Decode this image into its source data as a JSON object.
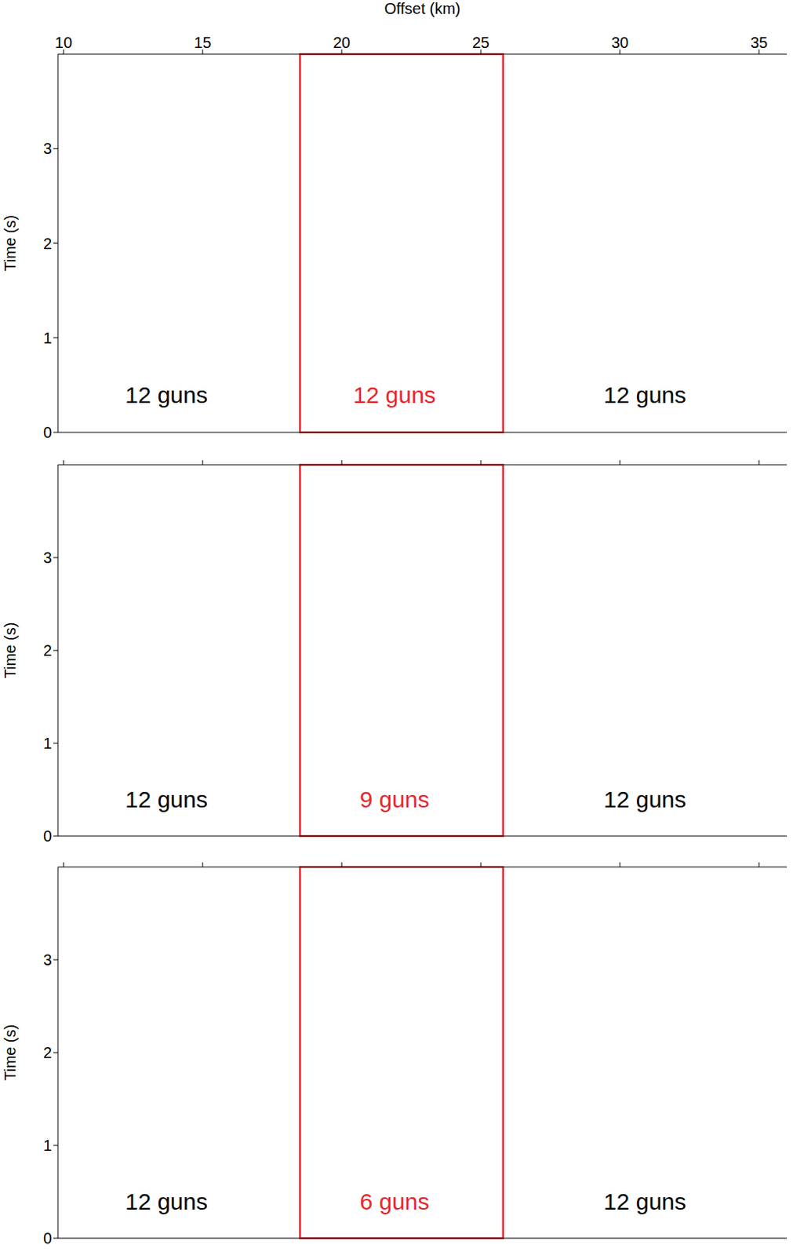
{
  "chart_data": [
    {
      "type": "image",
      "xlabel": "Offset (km)",
      "ylabel": "Time (s)",
      "xlim": [
        9.8,
        36
      ],
      "ylim": [
        0,
        4
      ],
      "xticks": [
        10,
        15,
        20,
        25,
        30,
        35
      ],
      "yticks": [
        0,
        1,
        2,
        3
      ],
      "box": {
        "x": [
          18.5,
          25.8
        ],
        "color": "#e8262d"
      },
      "annotations": [
        {
          "text": "12 guns",
          "x": 13.7,
          "y": 0.4,
          "color": "#000000"
        },
        {
          "text": "12 guns",
          "x": 21.9,
          "y": 0.4,
          "color": "#e8262d"
        },
        {
          "text": "12 guns",
          "x": 30.9,
          "y": 0.4,
          "color": "#000000"
        }
      ]
    },
    {
      "type": "image",
      "ylabel": "Time (s)",
      "tick_labels": "y",
      "xlim": [
        9.8,
        36
      ],
      "ylim": [
        0,
        4
      ],
      "xticks": [
        10,
        15,
        20,
        25,
        30,
        35
      ],
      "yticks": [
        0,
        1,
        2,
        3
      ],
      "box": {
        "x": [
          18.5,
          25.8
        ],
        "color": "#e8262d"
      },
      "annotations": [
        {
          "text": "12 guns",
          "x": 13.7,
          "y": 0.4,
          "color": "#000000"
        },
        {
          "text": "9 guns",
          "x": 21.9,
          "y": 0.4,
          "color": "#e8262d"
        },
        {
          "text": "12 guns",
          "x": 30.9,
          "y": 0.4,
          "color": "#000000"
        }
      ]
    },
    {
      "type": "image",
      "ylabel": "Time (s)",
      "tick_labels": "y",
      "xlim": [
        9.8,
        36
      ],
      "ylim": [
        0,
        4
      ],
      "xticks": [
        10,
        15,
        20,
        25,
        30,
        35
      ],
      "yticks": [
        0,
        1,
        2,
        3
      ],
      "box": {
        "x": [
          18.5,
          25.8
        ],
        "color": "#e8262d"
      },
      "annotations": [
        {
          "text": "12 guns",
          "x": 13.7,
          "y": 0.4,
          "color": "#000000"
        },
        {
          "text": "6 guns",
          "x": 21.9,
          "y": 0.4,
          "color": "#e8262d"
        },
        {
          "text": "12 guns",
          "x": 30.9,
          "y": 0.4,
          "color": "#000000"
        }
      ]
    }
  ]
}
